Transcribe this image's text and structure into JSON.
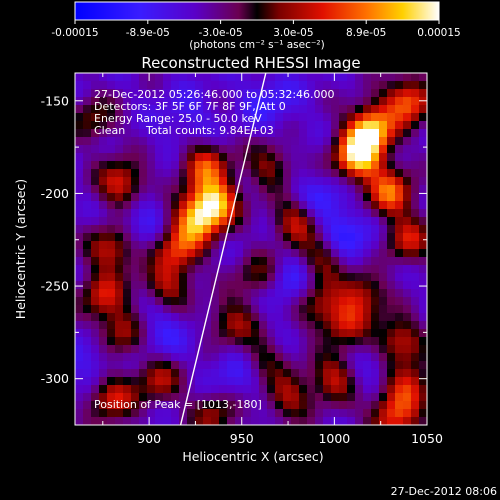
{
  "chart_data": {
    "type": "heatmap",
    "title": "Reconstructed RHESSI Image",
    "xlabel": "Heliocentric X (arcsec)",
    "ylabel": "Heliocentric Y (arcsec)",
    "xlim": [
      860,
      1050
    ],
    "ylim": [
      -325,
      -135
    ],
    "x_ticks": [
      "900",
      "950",
      "1000",
      "1050"
    ],
    "y_ticks": [
      "-150",
      "-200",
      "-250",
      "-300"
    ],
    "colorbar": {
      "range": [
        -0.00015,
        0.00015
      ],
      "tick_labels": [
        "-0.00015",
        "-8.9e-05",
        "-3.0e-05",
        "3.0e-05",
        "8.9e-05",
        "0.00015"
      ],
      "unit_label": "(photons cm⁻² s⁻¹ asec⁻²)"
    },
    "annotations": {
      "time_range": "27-Dec-2012 05:26:46.000 to 05:32:46.000",
      "detectors": "Detectors: 3F 5F 6F 7F 8F 9F, Att 0",
      "energy_range": "Energy Range: 25.0 - 50.0 keV",
      "method": "Clean",
      "total_counts": "Total counts: 9.84E+03",
      "peak_position": "Position of Peak = [1013,-180]"
    },
    "limb_line": {
      "x": [
        917,
        963
      ],
      "y": [
        -325,
        -135
      ]
    },
    "bright_regions": [
      {
        "x": 1020,
        "y": -165,
        "level": 0.9
      },
      {
        "x": 1013,
        "y": -180,
        "level": 1.0
      },
      {
        "x": 1030,
        "y": -200,
        "level": 0.7
      },
      {
        "x": 935,
        "y": -205,
        "level": 0.9
      },
      {
        "x": 925,
        "y": -215,
        "level": 0.7
      },
      {
        "x": 930,
        "y": -185,
        "level": 0.6
      },
      {
        "x": 915,
        "y": -230,
        "level": 0.55
      },
      {
        "x": 910,
        "y": -250,
        "level": 0.45
      },
      {
        "x": 885,
        "y": -195,
        "level": 0.6
      },
      {
        "x": 880,
        "y": -230,
        "level": 0.55
      },
      {
        "x": 875,
        "y": -255,
        "level": 0.5
      },
      {
        "x": 885,
        "y": -275,
        "level": 0.5
      },
      {
        "x": 880,
        "y": -310,
        "level": 0.55
      },
      {
        "x": 905,
        "y": -300,
        "level": 0.45
      },
      {
        "x": 945,
        "y": -270,
        "level": 0.45
      },
      {
        "x": 960,
        "y": -245,
        "level": 0.4
      },
      {
        "x": 980,
        "y": -215,
        "level": 0.6
      },
      {
        "x": 995,
        "y": -235,
        "level": 0.5
      },
      {
        "x": 990,
        "y": -260,
        "level": 0.4
      },
      {
        "x": 1005,
        "y": -270,
        "level": 0.45
      },
      {
        "x": 1015,
        "y": -255,
        "level": 0.5
      },
      {
        "x": 1040,
        "y": -150,
        "level": 0.7
      },
      {
        "x": 1040,
        "y": -225,
        "level": 0.5
      },
      {
        "x": 1035,
        "y": -280,
        "level": 0.55
      },
      {
        "x": 1040,
        "y": -305,
        "level": 0.65
      },
      {
        "x": 1030,
        "y": -320,
        "level": 0.6
      },
      {
        "x": 1000,
        "y": -300,
        "level": 0.5
      },
      {
        "x": 975,
        "y": -310,
        "level": 0.45
      },
      {
        "x": 960,
        "y": -290,
        "level": 0.4
      },
      {
        "x": 935,
        "y": -320,
        "level": 0.4
      },
      {
        "x": 870,
        "y": -160,
        "level": 0.35
      },
      {
        "x": 965,
        "y": -185,
        "level": 0.4
      }
    ],
    "dark_regions": [
      {
        "x": 1005,
        "y": -225,
        "level": 0.9
      },
      {
        "x": 975,
        "y": -250,
        "level": 0.8
      },
      {
        "x": 990,
        "y": -205,
        "level": 0.7
      },
      {
        "x": 950,
        "y": -295,
        "level": 0.7
      },
      {
        "x": 905,
        "y": -275,
        "level": 0.6
      },
      {
        "x": 895,
        "y": -215,
        "level": 0.6
      },
      {
        "x": 965,
        "y": -150,
        "level": 0.55
      },
      {
        "x": 1025,
        "y": -300,
        "level": 0.55
      },
      {
        "x": 920,
        "y": -160,
        "level": 0.45
      },
      {
        "x": 870,
        "y": -290,
        "level": 0.5
      }
    ]
  },
  "footer": {
    "timestamp": "27-Dec-2012 08:06"
  }
}
